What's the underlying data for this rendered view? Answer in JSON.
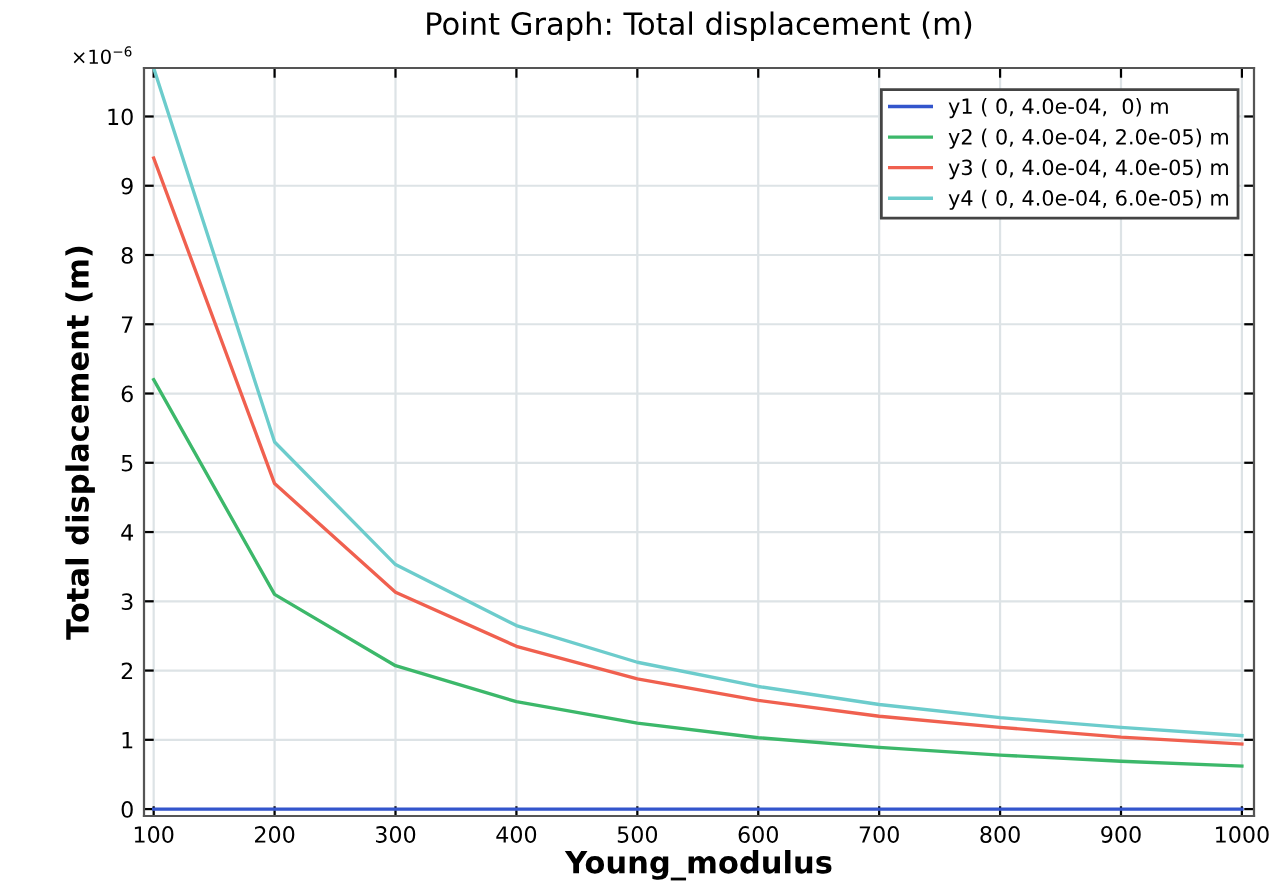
{
  "chart_data": {
    "type": "line",
    "title": "Point Graph: Total displacement (m)",
    "xlabel": "Young_modulus",
    "ylabel": "Total displacement (m)",
    "annotations": [
      "×10$^{−6}$"
    ],
    "x": [
      100,
      200,
      300,
      400,
      500,
      600,
      700,
      800,
      900,
      1000
    ],
    "series": [
      {
        "name": "y1 ( 0, 4.0e-04,  0) m",
        "color": "#3355cc",
        "values": [
          0,
          0,
          0,
          0,
          0,
          0,
          0,
          0,
          0,
          0
        ]
      },
      {
        "name": "y2 ( 0, 4.0e-04, 2.0e-05) m",
        "color": "#3cb86a",
        "values": [
          6.2,
          3.1,
          2.07,
          1.55,
          1.24,
          1.03,
          0.89,
          0.78,
          0.69,
          0.62
        ]
      },
      {
        "name": "y3 ( 0, 4.0e-04, 4.0e-05) m",
        "color": "#f0604f",
        "values": [
          9.4,
          4.7,
          3.13,
          2.35,
          1.88,
          1.57,
          1.34,
          1.18,
          1.04,
          0.94
        ]
      },
      {
        "name": "y4 ( 0, 4.0e-04, 6.0e-05) m",
        "color": "#6ccccc",
        "values": [
          10.7,
          5.3,
          3.53,
          2.65,
          2.12,
          1.77,
          1.51,
          1.32,
          1.18,
          1.06
        ]
      }
    ],
    "xlim": [
      92,
      1010
    ],
    "xticks": [
      100,
      200,
      300,
      400,
      500,
      600,
      700,
      800,
      900,
      1000
    ],
    "ylim": [
      -0.1,
      10.7
    ],
    "yticks": [
      0,
      1,
      2,
      3,
      4,
      5,
      6,
      7,
      8,
      9,
      10
    ],
    "grid": true,
    "legend": "top right",
    "marker": "none",
    "line_style": "solid"
  }
}
